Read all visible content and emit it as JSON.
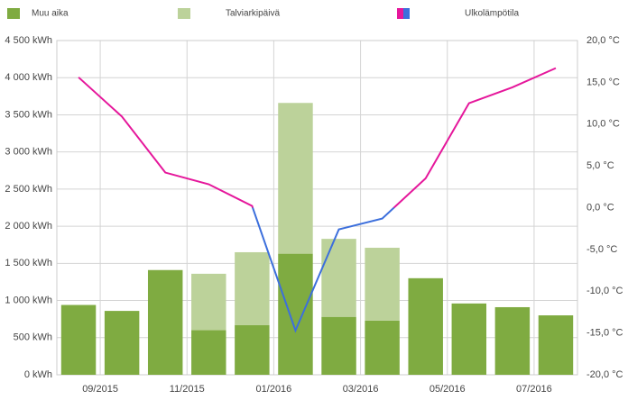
{
  "chart_data": {
    "type": "bar",
    "categories": [
      null,
      "09/2015",
      null,
      "11/2015",
      null,
      "01/2016",
      null,
      "03/2016",
      null,
      "05/2016",
      null,
      "07/2016"
    ],
    "series": [
      {
        "name": "Muu aika",
        "color": "#7fab41",
        "values": [
          940,
          860,
          1410,
          600,
          670,
          1630,
          780,
          730,
          1300,
          960,
          910,
          800
        ]
      },
      {
        "name": "Talviarkipäivä",
        "color": "#bcd29a",
        "values": [
          0,
          0,
          0,
          760,
          980,
          2030,
          1050,
          980,
          0,
          0,
          0,
          0
        ]
      },
      {
        "name": "Ulkolämpötila",
        "type": "line",
        "axis": "y2",
        "color": "#e5179b",
        "negative_color": "#3c6fdc",
        "values": [
          15.6,
          10.9,
          4.2,
          2.8,
          0.2,
          -14.7,
          -2.6,
          -1.3,
          3.5,
          12.5,
          14.4,
          16.7
        ]
      }
    ],
    "stacked": true,
    "ylim": [
      0,
      4500
    ],
    "yticks": [
      {
        "value": 0,
        "label": "0 kWh"
      },
      {
        "value": 500,
        "label": "500 kWh"
      },
      {
        "value": 1000,
        "label": "1 000 kWh"
      },
      {
        "value": 1500,
        "label": "1 500 kWh"
      },
      {
        "value": 2000,
        "label": "2 000 kWh"
      },
      {
        "value": 2500,
        "label": "2 500 kWh"
      },
      {
        "value": 3000,
        "label": "3 000 kWh"
      },
      {
        "value": 3500,
        "label": "3 500 kWh"
      },
      {
        "value": 4000,
        "label": "4 000 kWh"
      },
      {
        "value": 4500,
        "label": "4 500 kWh"
      }
    ],
    "y2lim": [
      -20,
      20
    ],
    "y2ticks": [
      {
        "value": -20,
        "label": "-20,0 °C"
      },
      {
        "value": -15,
        "label": "-15,0 °C"
      },
      {
        "value": -10,
        "label": "-10,0 °C"
      },
      {
        "value": -5,
        "label": "-5,0 °C"
      },
      {
        "value": 0,
        "label": "0,0 °C"
      },
      {
        "value": 5,
        "label": "5,0 °C"
      },
      {
        "value": 10,
        "label": "10,0 °C"
      },
      {
        "value": 15,
        "label": "15,0 °C"
      },
      {
        "value": 20,
        "label": "20,0 °C"
      }
    ],
    "grid": true,
    "legend": "top"
  }
}
